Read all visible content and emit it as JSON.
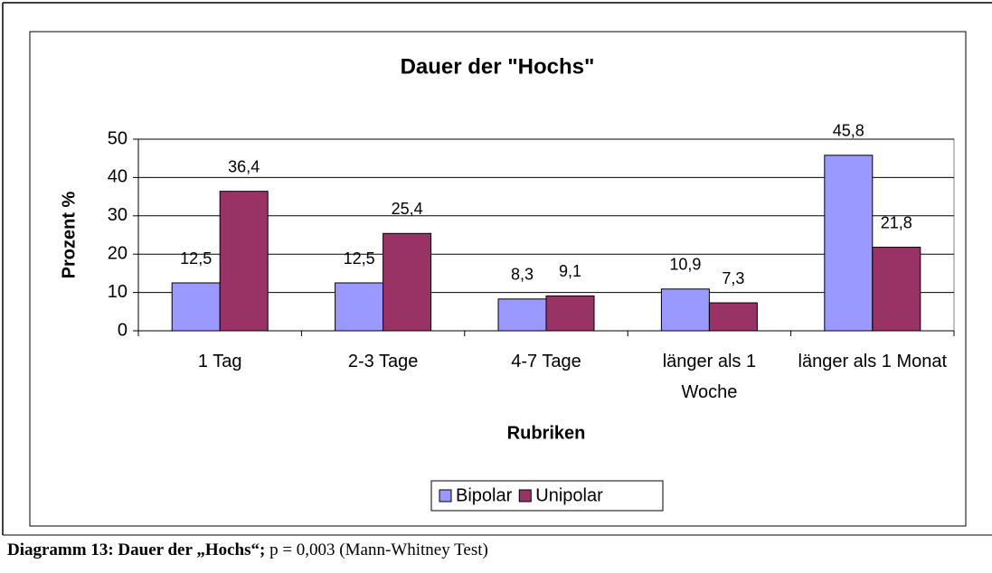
{
  "chart_data": {
    "type": "bar",
    "title": "Dauer der \"Hochs\"",
    "x_label": "Rubriken",
    "y_label": "Prozent %",
    "categories": [
      "1 Tag",
      "2-3 Tage",
      "4-7 Tage",
      "länger als 1 Woche",
      "länger als 1 Monat"
    ],
    "series": [
      {
        "name": "Bipolar",
        "color": "#9999ff",
        "values": [
          12.5,
          12.5,
          8.3,
          10.9,
          45.8
        ],
        "value_labels": [
          "12,5",
          "12,5",
          "8,3",
          "10,9",
          "45,8"
        ]
      },
      {
        "name": "Unipolar",
        "color": "#993366",
        "values": [
          36.4,
          25.4,
          9.1,
          7.3,
          21.8
        ],
        "value_labels": [
          "36,4",
          "25,4",
          "9,1",
          "7,3",
          "21,8"
        ]
      }
    ],
    "ylim": [
      0,
      50
    ],
    "yticks": [
      0,
      10,
      20,
      30,
      40,
      50
    ],
    "grid": true,
    "legend": "bottom"
  },
  "caption": {
    "bold": "Diagramm 13: Dauer der „Hochs“;",
    "text": " p = 0,003 (Mann-Whitney Test)"
  }
}
